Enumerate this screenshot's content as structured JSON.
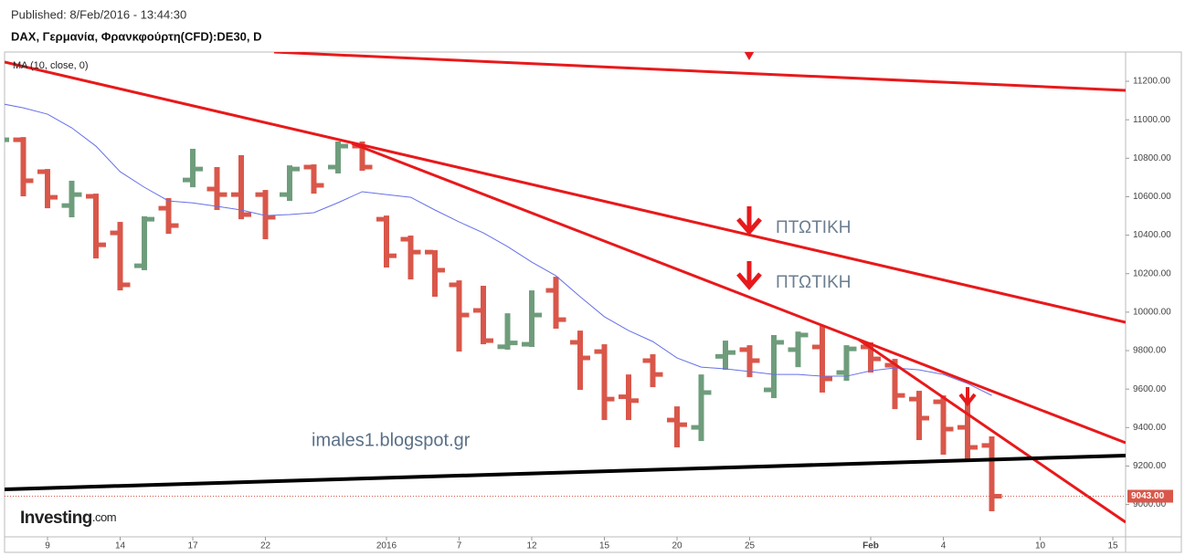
{
  "chart_data": {
    "type": "ohlc",
    "published": "Published: 8/Feb/2016 - 13:44:30",
    "title": "DAX, Γερμανία, Φρανκφούρτη(CFD):DE30, D",
    "categories": [
      null,
      null,
      "9",
      null,
      null,
      "14",
      null,
      null,
      "17",
      null,
      null,
      "22",
      null,
      null,
      null,
      null,
      "2016",
      null,
      null,
      "7",
      null,
      null,
      "12",
      null,
      null,
      "15",
      null,
      null,
      "20",
      null,
      null,
      "25",
      null,
      null,
      null,
      null,
      "Feb",
      null,
      null,
      "4",
      null,
      null,
      null,
      "10",
      null,
      null,
      "15"
    ],
    "open": [
      10880,
      10896,
      10730,
      10554,
      10602,
      10412,
      10241,
      10540,
      10687,
      10640,
      10611,
      10611,
      10611,
      10754,
      10754,
      10863,
      10483,
      10379,
      10312,
      10142,
      10009,
      9820,
      9833,
      10113,
      9843,
      9795,
      9560,
      9748,
      9439,
      9401,
      9770,
      9805,
      9596,
      9805,
      9819,
      9686,
      9819,
      9724,
      9548,
      9534,
      9401,
      9307,
      null,
      null,
      null,
      null,
      null
    ],
    "high": [
      10920,
      10910,
      10744,
      10683,
      10616,
      10469,
      10498,
      10593,
      10849,
      10754,
      10816,
      10635,
      10763,
      10768,
      10887,
      10887,
      10502,
      10398,
      10322,
      10165,
      10137,
      9994,
      10113,
      10184,
      9904,
      9833,
      9676,
      9781,
      9510,
      9676,
      9852,
      9828,
      9881,
      9899,
      9928,
      9828,
      9843,
      9757,
      9591,
      9567,
      9534,
      9354,
      null,
      null,
      null,
      null,
      null
    ],
    "low": [
      10860,
      10602,
      10540,
      10493,
      10279,
      10113,
      10218,
      10407,
      10649,
      10531,
      10483,
      10379,
      10578,
      10616,
      10721,
      10735,
      10232,
      10170,
      10080,
      9795,
      9833,
      9805,
      9819,
      9914,
      9596,
      9439,
      9439,
      9610,
      9297,
      9330,
      9700,
      9662,
      9553,
      9714,
      9582,
      9643,
      9686,
      9496,
      9335,
      9259,
      9235,
      8965,
      null,
      null,
      null,
      null,
      null
    ],
    "close": [
      10896,
      10683,
      10597,
      10611,
      10350,
      10142,
      10483,
      10450,
      10744,
      10611,
      10507,
      10493,
      10744,
      10659,
      10863,
      10754,
      10293,
      10312,
      10218,
      9985,
      9852,
      9840,
      9985,
      9961,
      9762,
      9548,
      9540,
      9676,
      9415,
      9582,
      9790,
      9748,
      9843,
      9881,
      9653,
      9809,
      9757,
      9567,
      9449,
      9392,
      9297,
      9043,
      null,
      null,
      null,
      null,
      null
    ],
    "up_color": "#6f9d7c",
    "down_color": "#d9574a",
    "ma": {
      "name": "MA (10, close, 0)",
      "color": "#6670e8",
      "values": [
        11086,
        11062,
        11029,
        10958,
        10863,
        10730,
        10649,
        10578,
        10568,
        10550,
        10531,
        10502,
        10507,
        10517,
        10569,
        10626,
        10611,
        10597,
        10531,
        10469,
        10412,
        10341,
        10260,
        10189,
        10080,
        9976,
        9904,
        9847,
        9762,
        9714,
        9705,
        9691,
        9676,
        9676,
        9667,
        9667,
        9695,
        9710,
        9700,
        9676,
        9629,
        9567,
        null,
        null,
        null,
        null,
        null
      ]
    },
    "last_label": "9043.00",
    "ylim": [
      8832,
      11352
    ],
    "yticks": [
      {
        "value": 9000,
        "label": "9000.00"
      },
      {
        "value": 9200,
        "label": "9200.00"
      },
      {
        "value": 9400,
        "label": "9400.00"
      },
      {
        "value": 9600,
        "label": "9600.00"
      },
      {
        "value": 9800,
        "label": "9800.00"
      },
      {
        "value": 10000,
        "label": "10000.00"
      },
      {
        "value": 10200,
        "label": "10200.00"
      },
      {
        "value": 10400,
        "label": "10400.00"
      },
      {
        "value": 10600,
        "label": "10600.00"
      },
      {
        "value": 10800,
        "label": "10800.00"
      },
      {
        "value": 11000,
        "label": "11000.00"
      },
      {
        "value": 11200,
        "label": "11200.00"
      }
    ],
    "annotations": [
      "ΠΤΩΤΙΚΗ",
      "ΠΤΩΤΙΚΗ"
    ],
    "watermark": "imales1.blogspot.gr",
    "logo": "Investing",
    "logo_suffix": ".com"
  }
}
